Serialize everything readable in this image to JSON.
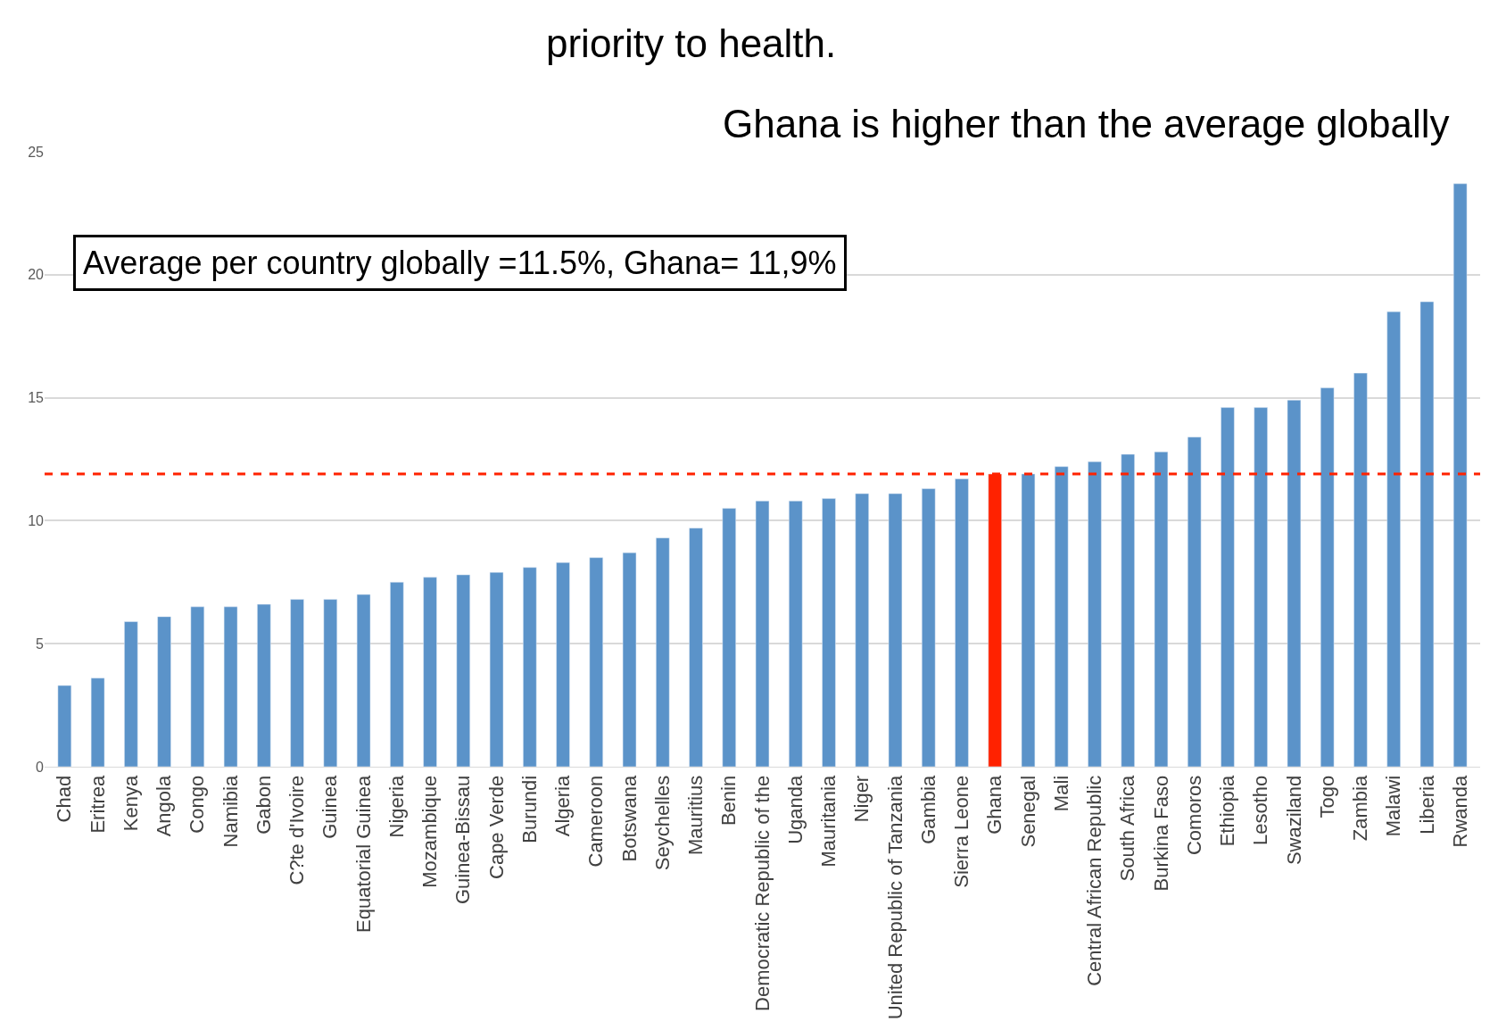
{
  "chart_data": {
    "type": "bar",
    "title": "priority to health.",
    "subtitle": "Ghana is higher than the average globally",
    "categories": [
      "Chad",
      "Eritrea",
      "Kenya",
      "Angola",
      "Congo",
      "Namibia",
      "Gabon",
      "C?te d'Ivoire",
      "Guinea",
      "Equatorial Guinea",
      "Nigeria",
      "Mozambique",
      "Guinea-Bissau",
      "Cape Verde",
      "Burundi",
      "Algeria",
      "Cameroon",
      "Botswana",
      "Seychelles",
      "Mauritius",
      "Benin",
      "Democratic Republic of the",
      "Uganda",
      "Mauritania",
      "Niger",
      "United Republic of Tanzania",
      "Gambia",
      "Sierra Leone",
      "Ghana",
      "Senegal",
      "Mali",
      "Central African Republic",
      "South Africa",
      "Burkina Faso",
      "Comoros",
      "Ethiopia",
      "Lesotho",
      "Swaziland",
      "Togo",
      "Zambia",
      "Malawi",
      "Liberia",
      "Rwanda"
    ],
    "values": [
      3.3,
      3.6,
      5.9,
      6.1,
      6.5,
      6.5,
      6.6,
      6.8,
      6.8,
      7.0,
      7.5,
      7.7,
      7.8,
      7.9,
      8.1,
      8.3,
      8.5,
      8.7,
      9.3,
      9.7,
      10.5,
      10.8,
      10.8,
      10.9,
      11.1,
      11.1,
      11.3,
      11.7,
      11.9,
      11.9,
      12.2,
      12.4,
      12.7,
      12.8,
      13.4,
      14.6,
      14.6,
      14.9,
      15.4,
      16.0,
      18.5,
      18.9,
      23.7
    ],
    "colors": [
      "#5b93c9",
      "#5b93c9",
      "#5b93c9",
      "#5b93c9",
      "#5b93c9",
      "#5b93c9",
      "#5b93c9",
      "#5b93c9",
      "#5b93c9",
      "#5b93c9",
      "#5b93c9",
      "#5b93c9",
      "#5b93c9",
      "#5b93c9",
      "#5b93c9",
      "#5b93c9",
      "#5b93c9",
      "#5b93c9",
      "#5b93c9",
      "#5b93c9",
      "#5b93c9",
      "#5b93c9",
      "#5b93c9",
      "#5b93c9",
      "#5b93c9",
      "#5b93c9",
      "#5b93c9",
      "#5b93c9",
      "#ff2200",
      "#5b93c9",
      "#5b93c9",
      "#5b93c9",
      "#5b93c9",
      "#5b93c9",
      "#5b93c9",
      "#5b93c9",
      "#5b93c9",
      "#5b93c9",
      "#5b93c9",
      "#5b93c9",
      "#5b93c9",
      "#5b93c9",
      "#5b93c9"
    ],
    "ylim": [
      0,
      25
    ],
    "yticks": [
      0,
      5,
      10,
      15,
      20,
      25
    ],
    "grid": "y",
    "ref_lines": [
      {
        "axis": "y",
        "value": 11.9,
        "label": null,
        "color": "#ff2200",
        "line_style": "dashed"
      }
    ],
    "annotations": [
      "Average per country globally =11.5%, Ghana= 11,9%"
    ]
  }
}
